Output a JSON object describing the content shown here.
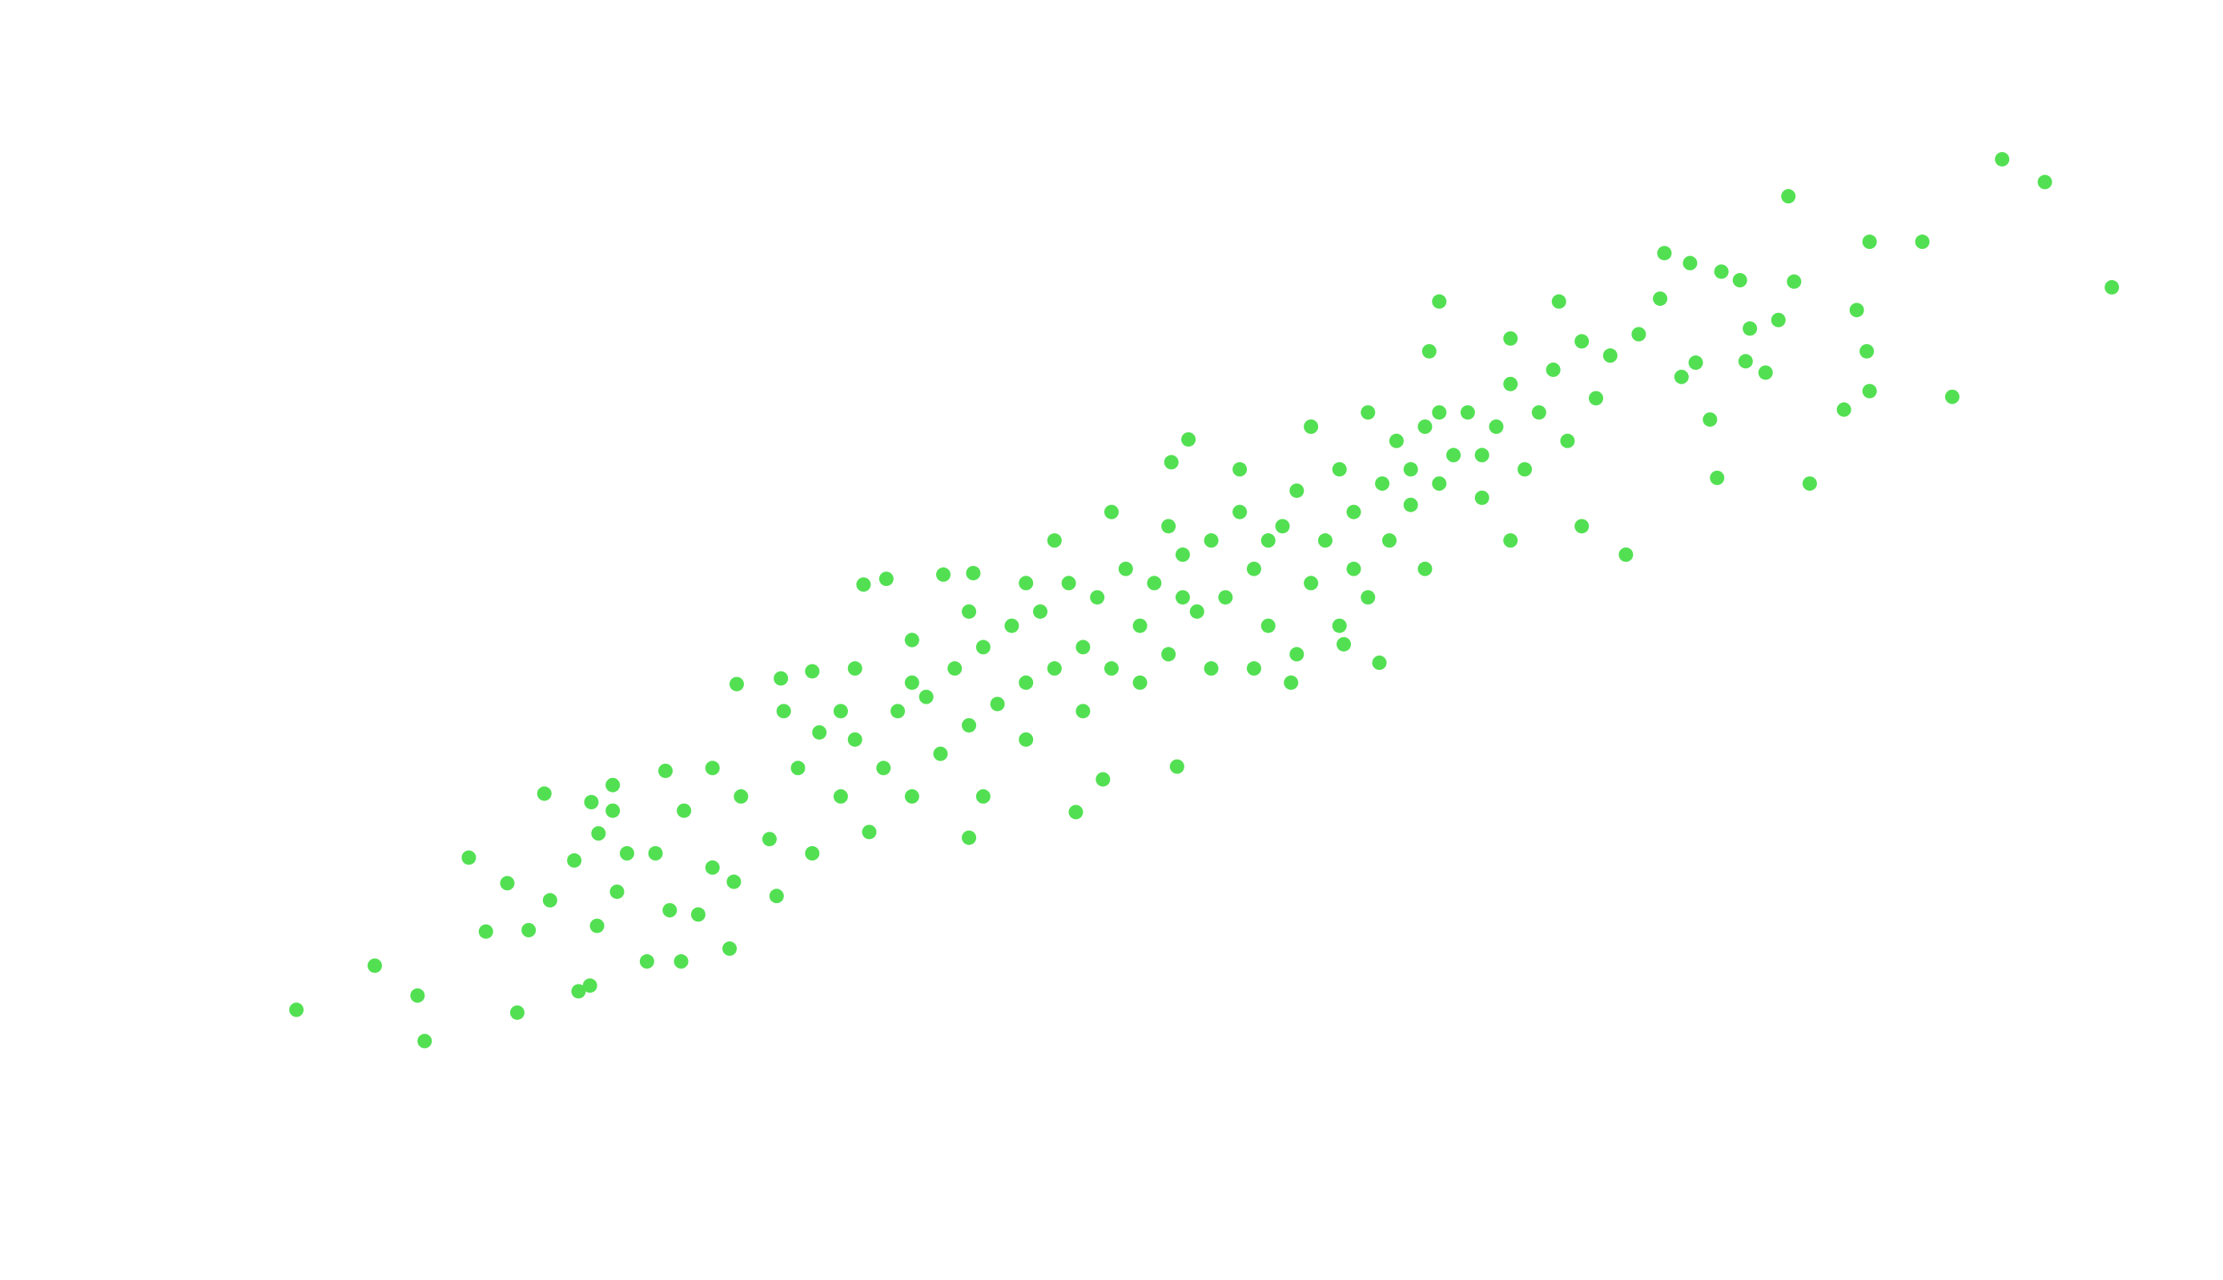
{
  "chart_data": {
    "type": "scatter",
    "color": "#52e052",
    "xlim": [
      0,
      1560
    ],
    "ylim": [
      0,
      900
    ],
    "x": [
      208,
      263,
      293,
      298,
      329,
      341,
      356,
      363,
      382,
      371,
      386,
      406,
      414,
      403,
      415,
      430,
      420,
      433,
      419,
      454,
      478,
      512,
      467,
      490,
      517,
      548,
      570,
      606,
      622,
      662,
      683,
      755,
      774,
      826,
      680,
      834,
      822,
      1010,
      1003,
      1094,
      1060,
      1168,
      1186,
      1208,
      1221,
      1255,
      1259,
      1312,
      1349,
      1405,
      1435,
      1482,
      1303,
      1310,
      1312,
      1294,
      1270,
      1370,
      1205,
      1141,
      1225,
      1239,
      1248,
      1228,
      968,
      943,
      906,
      460,
      480,
      500,
      520,
      540,
      560,
      575,
      590,
      600,
      610,
      620,
      630,
      640,
      650,
      660,
      670,
      680,
      690,
      700,
      710,
      720,
      730,
      740,
      750,
      760,
      770,
      780,
      790,
      800,
      810,
      820,
      830,
      840,
      850,
      860,
      870,
      880,
      890,
      900,
      910,
      920,
      930,
      940,
      950,
      960,
      970,
      980,
      990,
      1000,
      1010,
      1020,
      1030,
      1040,
      1050,
      1060,
      1070,
      1080,
      1090,
      1100,
      1110,
      1120,
      1130,
      1150,
      1165,
      1180,
      1190,
      1200,
      545,
      515,
      570,
      470,
      440,
      430,
      500,
      600,
      640,
      690,
      720,
      760,
      800,
      850,
      880,
      910,
      940,
      975,
      1000,
      1060,
      1110,
      780,
      820,
      870,
      920,
      960,
      1010,
      720,
      680,
      640,
      590,
      550,
      740,
      830,
      890,
      950,
      990,
      1040
    ],
    "values": [
      190,
      221,
      200,
      168,
      297,
      245,
      279,
      188,
      342,
      246,
      267,
      203,
      207,
      295,
      336,
      348,
      314,
      273,
      249,
      224,
      224,
      233,
      358,
      257,
      419,
      423,
      428,
      489,
      493,
      496,
      497,
      329,
      352,
      361,
      311,
      591,
      575,
      688,
      653,
      688,
      662,
      722,
      715,
      709,
      703,
      762,
      702,
      730,
      730,
      788,
      772,
      698,
      682,
      653,
      625,
      612,
      560,
      621,
      564,
      510,
      646,
      638,
      675,
      669,
      434,
      447,
      420,
      300,
      330,
      290,
      340,
      310,
      360,
      385,
      340,
      380,
      315,
      360,
      400,
      340,
      410,
      370,
      430,
      390,
      445,
      405,
      460,
      420,
      470,
      430,
      490,
      445,
      480,
      430,
      500,
      460,
      490,
      440,
      510,
      470,
      520,
      480,
      540,
      500,
      460,
      530,
      555,
      490,
      520,
      570,
      540,
      480,
      560,
      590,
      545,
      600,
      560,
      580,
      610,
      550,
      600,
      630,
      570,
      610,
      640,
      590,
      660,
      620,
      650,
      665,
      690,
      635,
      645,
      605,
      270,
      280,
      300,
      260,
      300,
      330,
      360,
      430,
      450,
      340,
      380,
      400,
      420,
      430,
      430,
      440,
      460,
      520,
      500,
      520,
      530,
      540,
      530,
      570,
      600,
      610,
      610,
      490,
      470,
      420,
      400,
      400,
      520,
      480,
      520,
      500,
      570,
      580
    ]
  }
}
